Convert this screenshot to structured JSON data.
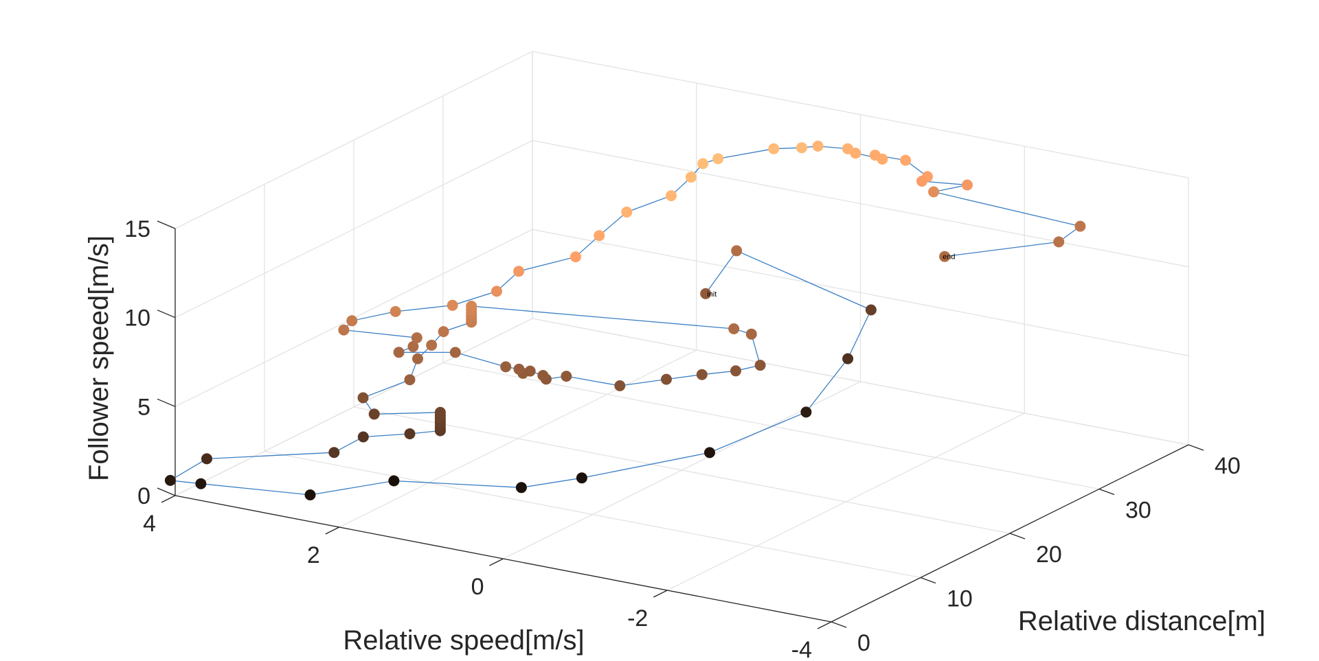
{
  "chart_data": {
    "type": "scatter3d-line",
    "title": "",
    "xlabel": "Relative speed[m/s]",
    "ylabel": "Relative distance[m]",
    "zlabel": "Follower speed[m/s]",
    "xlim": [
      -4,
      4
    ],
    "ylim": [
      0,
      40
    ],
    "zlim": [
      0,
      15
    ],
    "x_ticks": [
      "4",
      "2",
      "0",
      "-2",
      "-4"
    ],
    "y_ticks": [
      "0",
      "10",
      "20",
      "30",
      "40"
    ],
    "z_ticks": [
      "0",
      "5",
      "10",
      "15"
    ],
    "grid": true,
    "line_color": "#3b7fc4",
    "colormap": "copper",
    "annotations": {
      "start": "init",
      "end": "end"
    },
    "series": [
      {
        "points": [
          {
            "x": 0.9,
            "y": 30.93,
            "z": 6.4
          },
          {
            "x": 0.78,
            "y": 33.29,
            "z": 8.33
          },
          {
            "x": -0.09,
            "y": 40.36,
            "z": 4.02
          },
          {
            "x": -0.34,
            "y": 35.46,
            "z": 2.72
          },
          {
            "x": -0.34,
            "y": 30.79,
            "z": 0.88
          },
          {
            "x": 0.01,
            "y": 23.21,
            "z": 0.18
          },
          {
            "x": 0.76,
            "y": 15.78,
            "z": -0.06
          },
          {
            "x": 1.14,
            "y": 12.5,
            "z": -0.12
          },
          {
            "x": 2.39,
            "y": 9.71,
            "z": -0.16
          },
          {
            "x": 2.84,
            "y": 4.46,
            "z": -0.04
          },
          {
            "x": 3.9,
            "y": 1.96,
            "z": 0.27
          },
          {
            "x": 4.1,
            "y": 0.37,
            "z": 0.67
          },
          {
            "x": 3.64,
            "y": 0.23,
            "z": 2.33
          },
          {
            "x": 2.34,
            "y": 2.55,
            "z": 3.26
          },
          {
            "x": 2.41,
            "y": 6.46,
            "z": 3.1
          },
          {
            "x": 1.98,
            "y": 7.72,
            "z": 3.34
          },
          {
            "x": 1.71,
            "y": 8.66,
            "z": 3.52
          },
          {
            "x": 1.71,
            "y": 8.66,
            "z": 3.65
          },
          {
            "x": 1.71,
            "y": 8.66,
            "z": 3.8
          },
          {
            "x": 1.71,
            "y": 8.66,
            "z": 3.95
          },
          {
            "x": 1.71,
            "y": 8.66,
            "z": 4.1
          },
          {
            "x": 1.71,
            "y": 8.66,
            "z": 4.25
          },
          {
            "x": 1.71,
            "y": 8.66,
            "z": 4.4
          },
          {
            "x": 1.71,
            "y": 8.66,
            "z": 4.55
          },
          {
            "x": 2.34,
            "y": 7.04,
            "z": 4.3
          },
          {
            "x": 2.33,
            "y": 5.7,
            "z": 5.56
          },
          {
            "x": 1.81,
            "y": 6.16,
            "z": 6.92
          },
          {
            "x": 1.92,
            "y": 8.05,
            "z": 7.53
          },
          {
            "x": 1.76,
            "y": 8.14,
            "z": 8.41
          },
          {
            "x": 1.72,
            "y": 9.11,
            "z": 8.97
          },
          {
            "x": 1.49,
            "y": 10.12,
            "z": 9.45
          },
          {
            "x": 1.49,
            "y": 10.12,
            "z": 9.63
          },
          {
            "x": 1.49,
            "y": 10.12,
            "z": 9.81
          },
          {
            "x": 1.49,
            "y": 10.12,
            "z": 9.99
          },
          {
            "x": 1.49,
            "y": 10.12,
            "z": 10.17
          },
          {
            "x": 1.49,
            "y": 10.12,
            "z": 10.35
          },
          {
            "x": -0.49,
            "y": 21.32,
            "z": 8.05
          },
          {
            "x": -0.62,
            "y": 22.1,
            "z": 7.67
          },
          {
            "x": -0.74,
            "y": 21.98,
            "z": 6.06
          },
          {
            "x": -0.59,
            "y": 20.62,
            "z": 5.95
          },
          {
            "x": -0.34,
            "y": 19.13,
            "z": 5.89
          },
          {
            "x": -0.03,
            "y": 17.99,
            "z": 5.63
          },
          {
            "x": 0.22,
            "y": 15.08,
            "z": 5.77
          },
          {
            "x": 0.67,
            "y": 13.22,
            "z": 6.37
          },
          {
            "x": 0.84,
            "y": 12.52,
            "z": 6.23
          },
          {
            "x": 0.87,
            "y": 12.44,
            "z": 6.43
          },
          {
            "x": 1.01,
            "y": 12.29,
            "z": 6.59
          },
          {
            "x": 1.05,
            "y": 11.85,
            "z": 6.54
          },
          {
            "x": 1.1,
            "y": 11.87,
            "z": 6.72
          },
          {
            "x": 1.22,
            "y": 11.49,
            "z": 6.84
          },
          {
            "x": 1.72,
            "y": 10.43,
            "z": 7.47
          },
          {
            "x": 2.17,
            "y": 8.24,
            "z": 7.62
          },
          {
            "x": 2.03,
            "y": 8.56,
            "z": 7.99
          },
          {
            "x": 2.04,
            "y": 9.06,
            "z": 8.35
          },
          {
            "x": 2.64,
            "y": 6.39,
            "z": 8.92
          },
          {
            "x": 2.58,
            "y": 6.75,
            "z": 9.4
          },
          {
            "x": 2.15,
            "y": 7.68,
            "z": 10.07
          },
          {
            "x": 1.56,
            "y": 8.65,
            "z": 10.7
          },
          {
            "x": 1.21,
            "y": 10.38,
            "z": 11.37
          },
          {
            "x": 1.16,
            "y": 12.39,
            "z": 12.04
          },
          {
            "x": 0.71,
            "y": 14.63,
            "z": 12.69
          },
          {
            "x": 0.64,
            "y": 16.63,
            "z": 13.45
          },
          {
            "x": 0.56,
            "y": 18.97,
            "z": 14.26
          },
          {
            "x": 0.34,
            "y": 21.93,
            "z": 14.64
          },
          {
            "x": 0.38,
            "y": 24.52,
            "z": 15.0
          },
          {
            "x": 0.42,
            "y": 26.22,
            "z": 15.3
          },
          {
            "x": 0.35,
            "y": 27.27,
            "z": 15.38
          },
          {
            "x": 0.11,
            "y": 31.3,
            "z": 15.15
          },
          {
            "x": -0.09,
            "y": 32.6,
            "z": 15.06
          },
          {
            "x": -0.03,
            "y": 34.96,
            "z": 14.51
          },
          {
            "x": -0.24,
            "y": 36.37,
            "z": 14.2
          },
          {
            "x": -0.32,
            "y": 36.51,
            "z": 13.99
          },
          {
            "x": -0.58,
            "y": 37.13,
            "z": 13.73
          },
          {
            "x": -0.41,
            "y": 37.87,
            "z": 13.62
          },
          {
            "x": -0.71,
            "y": 38.53,
            "z": 13.43
          },
          {
            "x": -0.99,
            "y": 38.41,
            "z": 12.79
          },
          {
            "x": -0.9,
            "y": 38.62,
            "z": 12.4
          },
          {
            "x": -1.27,
            "y": 40.3,
            "z": 12.1
          },
          {
            "x": -0.75,
            "y": 41.31,
            "z": 11.0
          },
          {
            "x": -2.0,
            "y": 46.24,
            "z": 8.95
          },
          {
            "x": -2.0,
            "y": 43.84,
            "z": 8.67
          },
          {
            "x": -1.1,
            "y": 39.33,
            "z": 8.17
          }
        ]
      }
    ]
  }
}
